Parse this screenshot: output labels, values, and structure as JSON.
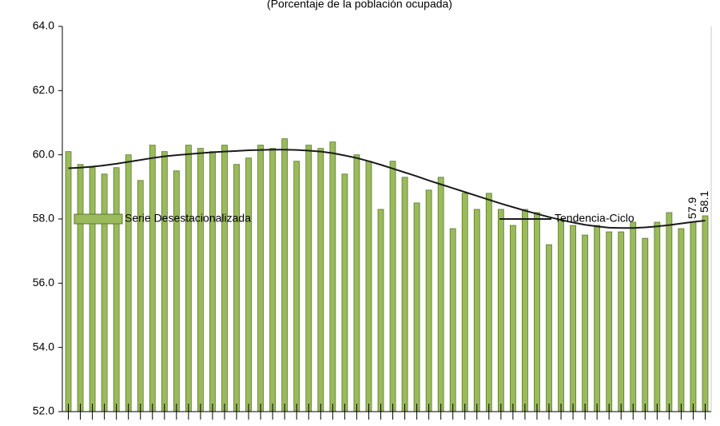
{
  "chart_data": {
    "type": "bar",
    "subtitle": "(Porcentaje de la población ocupada)",
    "categories": [
      null,
      null,
      null,
      null,
      null,
      null,
      null,
      null,
      null,
      null,
      null,
      null,
      null,
      null,
      null,
      null,
      null,
      null,
      null,
      null,
      null,
      null,
      null,
      null,
      null,
      null,
      null,
      null,
      null,
      null,
      null,
      null,
      null,
      null,
      null,
      null,
      null,
      null,
      null,
      null,
      null,
      null,
      null,
      null,
      null,
      null,
      null,
      null,
      null,
      null,
      null,
      null,
      null,
      null
    ],
    "series": [
      {
        "name": "Serie Desestacionalizada",
        "color": "#9aba5c",
        "type": "bar",
        "values": [
          60.1,
          59.7,
          59.6,
          59.4,
          59.6,
          60.0,
          59.2,
          60.3,
          60.1,
          59.5,
          60.3,
          60.2,
          60.1,
          60.3,
          59.7,
          59.9,
          60.3,
          60.2,
          60.5,
          59.8,
          60.3,
          60.2,
          60.4,
          59.4,
          60.0,
          59.8,
          58.3,
          59.8,
          59.3,
          58.5,
          58.9,
          59.3,
          57.7,
          58.8,
          58.3,
          58.8,
          58.3,
          57.8,
          58.3,
          58.2,
          57.2,
          58.0,
          57.8,
          57.5,
          57.8,
          57.6,
          57.6,
          57.9,
          57.4,
          57.9,
          58.2,
          57.7,
          57.9,
          58.1
        ],
        "value_labels": [
          null,
          null,
          null,
          null,
          null,
          null,
          null,
          null,
          null,
          null,
          null,
          null,
          null,
          null,
          null,
          null,
          null,
          null,
          null,
          null,
          null,
          null,
          null,
          null,
          null,
          null,
          null,
          null,
          null,
          null,
          null,
          null,
          null,
          null,
          null,
          null,
          null,
          null,
          null,
          null,
          null,
          null,
          null,
          null,
          null,
          null,
          null,
          null,
          null,
          null,
          null,
          null,
          "57.9",
          "58.1"
        ]
      },
      {
        "name": "Tendencia-Ciclo",
        "color": "#1a1a1a",
        "type": "line",
        "values": [
          59.58,
          59.6,
          59.63,
          59.67,
          59.72,
          59.78,
          59.84,
          59.9,
          59.95,
          59.99,
          60.02,
          60.05,
          60.08,
          60.1,
          60.12,
          60.14,
          60.15,
          60.16,
          60.16,
          60.15,
          60.13,
          60.1,
          60.05,
          59.98,
          59.9,
          59.8,
          59.69,
          59.57,
          59.45,
          59.33,
          59.2,
          59.08,
          58.96,
          58.84,
          58.72,
          58.6,
          58.48,
          58.37,
          58.26,
          58.16,
          58.06,
          57.97,
          57.89,
          57.82,
          57.77,
          57.73,
          57.72,
          57.72,
          57.74,
          57.77,
          57.81,
          57.86,
          57.91,
          57.95
        ]
      }
    ],
    "ylim": [
      52,
      64
    ],
    "yticks": [
      {
        "value": 52,
        "label": "52.0"
      },
      {
        "value": 54,
        "label": "54.0"
      },
      {
        "value": 56,
        "label": "56.0"
      },
      {
        "value": 58,
        "label": "58.0"
      },
      {
        "value": 60,
        "label": "60.0"
      },
      {
        "value": 62,
        "label": "62.0"
      },
      {
        "value": 64,
        "label": "64.0"
      }
    ]
  }
}
